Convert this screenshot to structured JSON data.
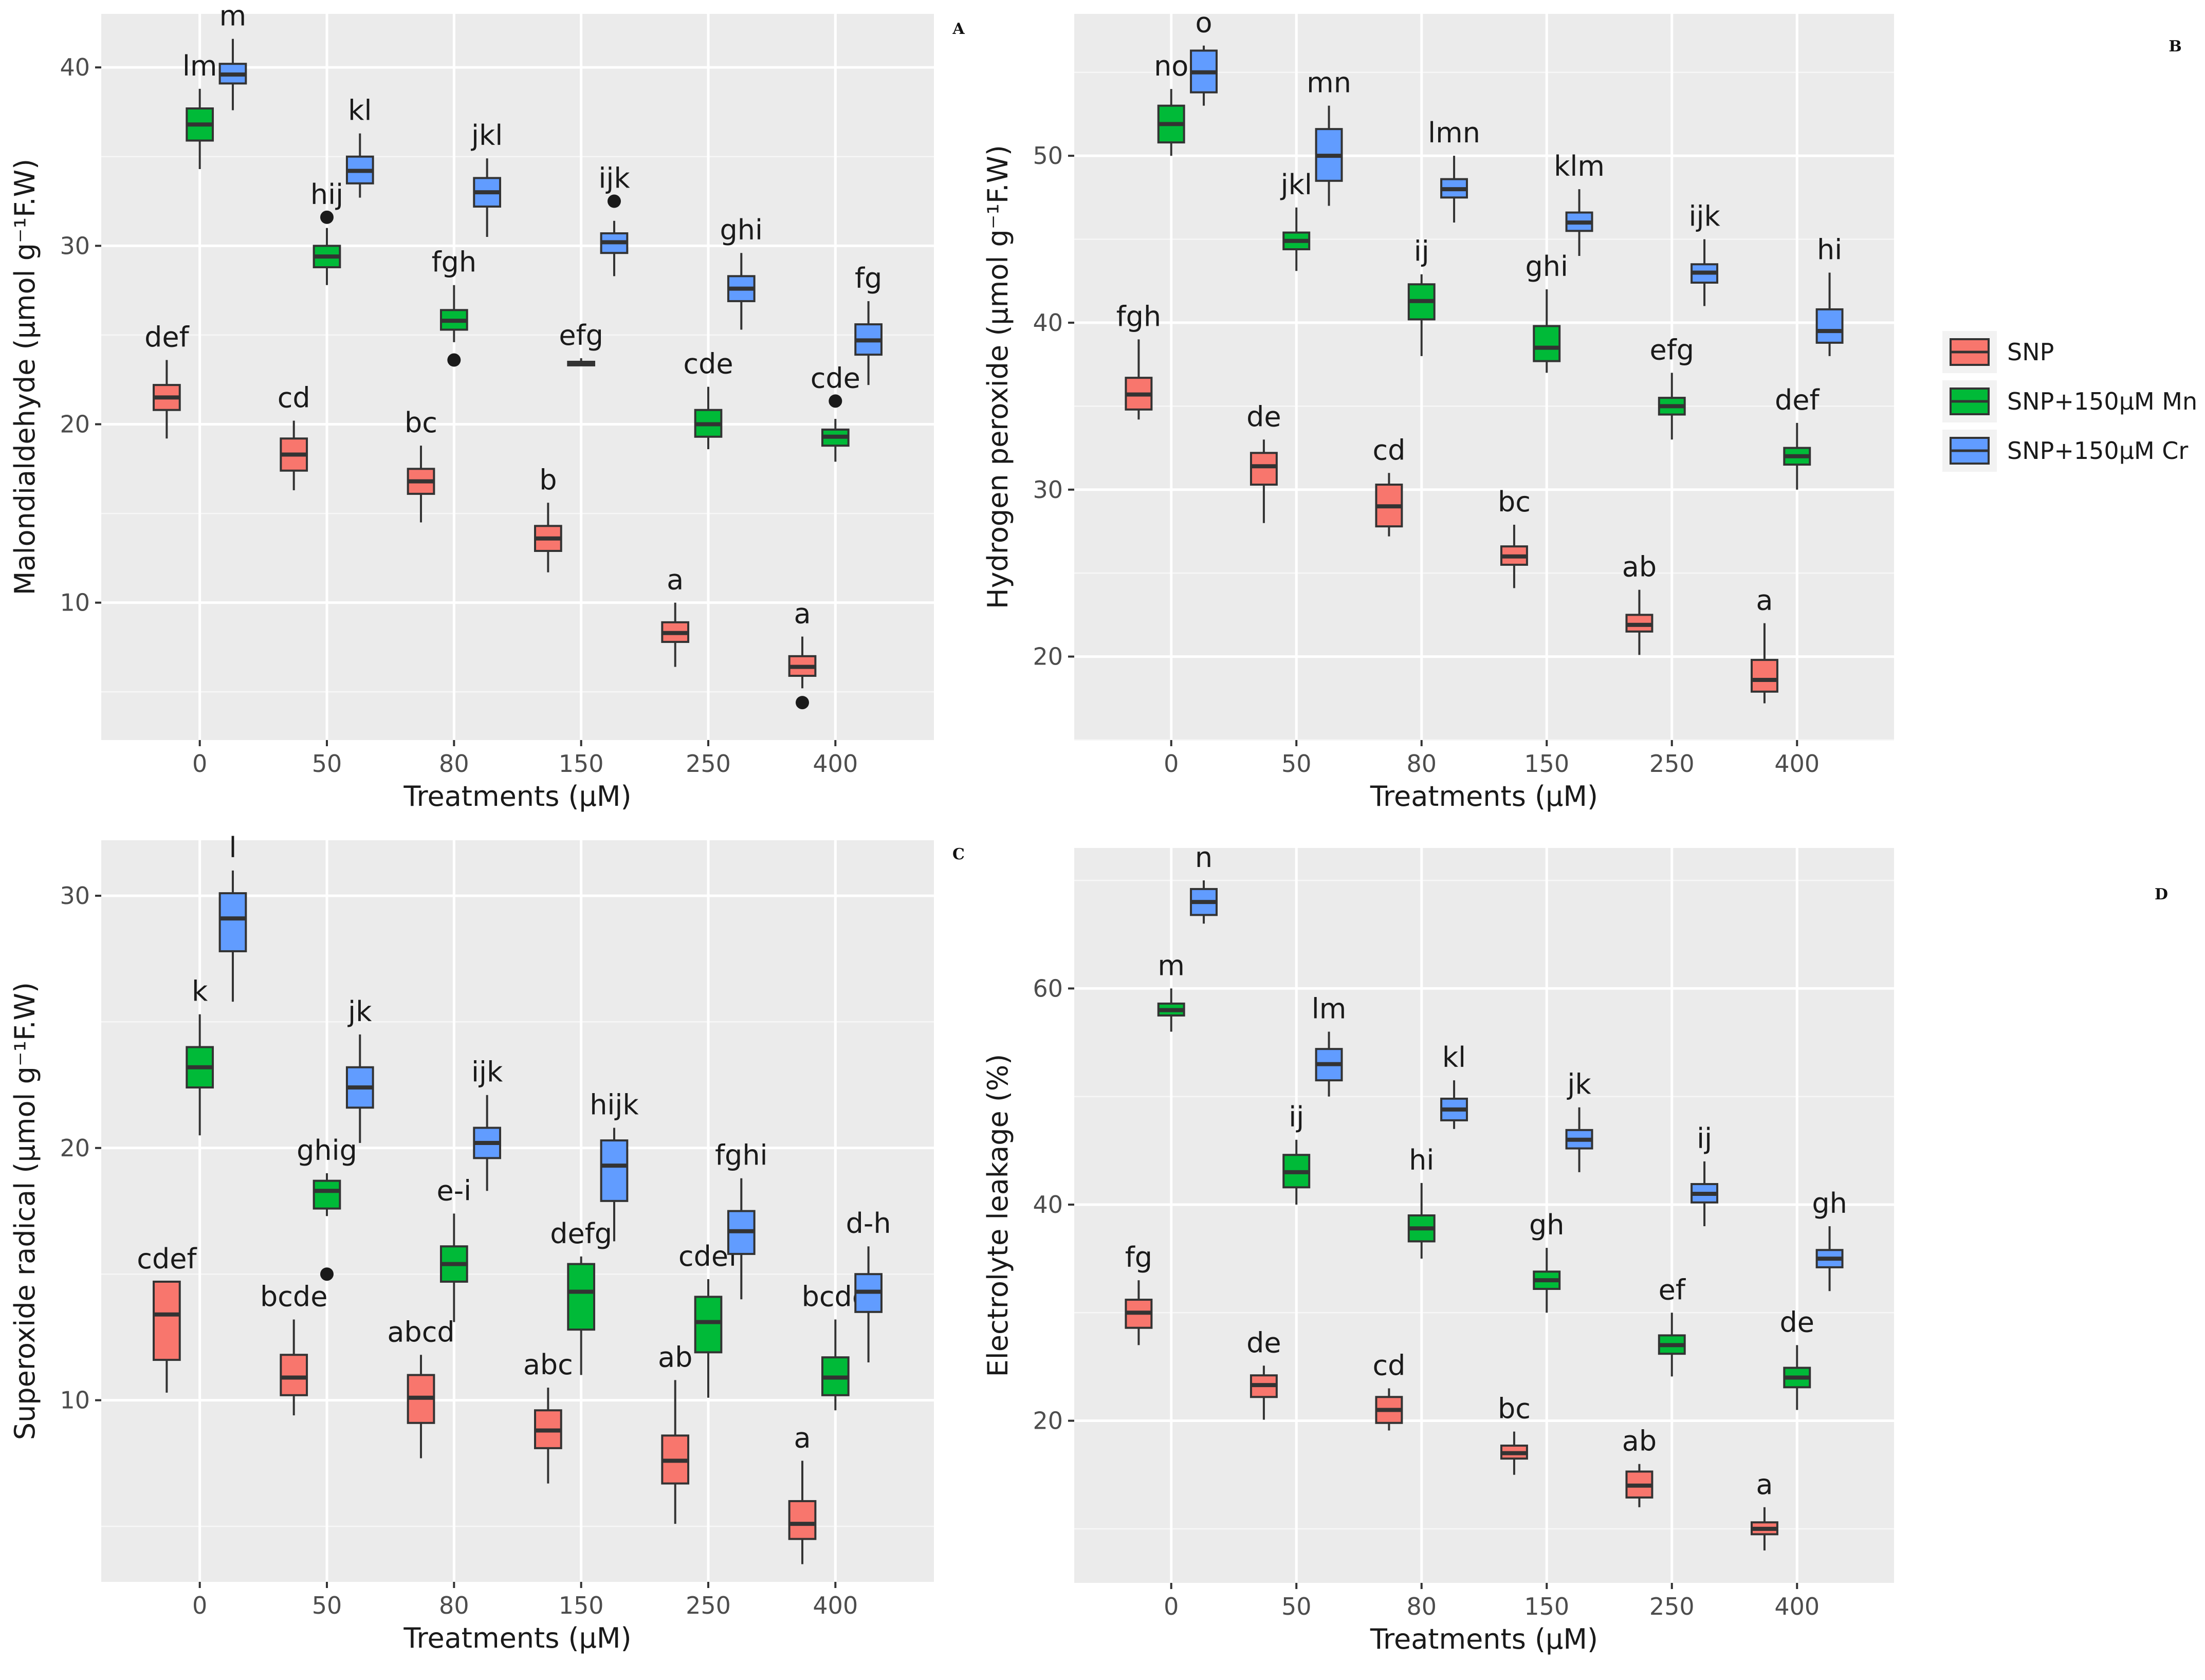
{
  "legend": {
    "items": [
      {
        "label": "SNP",
        "color": "#F8766D"
      },
      {
        "label": "SNP+150μM Mn",
        "color": "#00BA38"
      },
      {
        "label": "SNP+150μM Cr",
        "color": "#619CFF"
      }
    ]
  },
  "chart_data": [
    {
      "panel": "A",
      "type": "box",
      "categories": [
        "0",
        "50",
        "80",
        "150",
        "250",
        "400"
      ],
      "xlabel": "Treatments (μM)",
      "ylabel": "Malondialdehyde (μmol g⁻¹F.W)",
      "ylim": [
        2.3,
        43
      ],
      "yticks": [
        10,
        20,
        30,
        40
      ],
      "grid": true,
      "series": [
        {
          "name": "SNP",
          "boxes": [
            {
              "min": 19.2,
              "q1": 20.8,
              "median": 21.5,
              "q3": 22.2,
              "max": 23.6,
              "label": "def",
              "outliers": []
            },
            {
              "min": 16.3,
              "q1": 17.4,
              "median": 18.3,
              "q3": 19.2,
              "max": 20.2,
              "label": "cd",
              "outliers": []
            },
            {
              "min": 14.5,
              "q1": 16.1,
              "median": 16.8,
              "q3": 17.5,
              "max": 18.8,
              "label": "bc",
              "outliers": []
            },
            {
              "min": 11.7,
              "q1": 12.9,
              "median": 13.6,
              "q3": 14.3,
              "max": 15.6,
              "label": "b",
              "outliers": []
            },
            {
              "min": 6.4,
              "q1": 7.8,
              "median": 8.3,
              "q3": 8.9,
              "max": 10.0,
              "label": "a",
              "outliers": []
            },
            {
              "min": 5.2,
              "q1": 5.9,
              "median": 6.4,
              "q3": 7.0,
              "max": 8.1,
              "label": "a",
              "outliers": [
                4.4
              ]
            }
          ]
        },
        {
          "name": "SNP+150μM Mn",
          "boxes": [
            {
              "min": 34.3,
              "q1": 35.9,
              "median": 36.8,
              "q3": 37.7,
              "max": 38.8,
              "label": "lm",
              "outliers": []
            },
            {
              "min": 27.8,
              "q1": 28.8,
              "median": 29.4,
              "q3": 30.0,
              "max": 31.0,
              "label": "hij",
              "outliers": [
                31.6
              ]
            },
            {
              "min": 24.6,
              "q1": 25.3,
              "median": 25.8,
              "q3": 26.4,
              "max": 27.8,
              "label": "fgh",
              "outliers": [
                23.6
              ]
            },
            {
              "min": 23.3,
              "q1": 23.3,
              "median": 23.4,
              "q3": 23.5,
              "max": 23.7,
              "label": "efg",
              "outliers": []
            },
            {
              "min": 18.6,
              "q1": 19.3,
              "median": 20.0,
              "q3": 20.8,
              "max": 22.1,
              "label": "cde",
              "outliers": []
            },
            {
              "min": 17.9,
              "q1": 18.8,
              "median": 19.3,
              "q3": 19.7,
              "max": 20.3,
              "label": "cde",
              "outliers": [
                21.3
              ]
            }
          ]
        },
        {
          "name": "SNP+150μM Cr",
          "boxes": [
            {
              "min": 37.6,
              "q1": 39.1,
              "median": 39.6,
              "q3": 40.2,
              "max": 41.6,
              "label": "m",
              "outliers": []
            },
            {
              "min": 32.7,
              "q1": 33.5,
              "median": 34.2,
              "q3": 35.0,
              "max": 36.3,
              "label": "kl",
              "outliers": []
            },
            {
              "min": 30.5,
              "q1": 32.2,
              "median": 33.0,
              "q3": 33.8,
              "max": 34.9,
              "label": "jkl",
              "outliers": []
            },
            {
              "min": 28.3,
              "q1": 29.6,
              "median": 30.2,
              "q3": 30.7,
              "max": 31.4,
              "label": "ijk",
              "outliers": [
                32.5
              ]
            },
            {
              "min": 25.3,
              "q1": 26.9,
              "median": 27.6,
              "q3": 28.3,
              "max": 29.6,
              "label": "ghi",
              "outliers": []
            },
            {
              "min": 22.2,
              "q1": 23.9,
              "median": 24.7,
              "q3": 25.6,
              "max": 26.9,
              "label": "fg",
              "outliers": []
            }
          ]
        }
      ]
    },
    {
      "panel": "B",
      "type": "box",
      "categories": [
        "0",
        "50",
        "80",
        "150",
        "250",
        "400"
      ],
      "xlabel": "Treatments (μM)",
      "ylabel": "Hydrogen peroxide (μmol g⁻¹F.W)",
      "ylim": [
        15,
        58.5
      ],
      "yticks": [
        20,
        30,
        40,
        50
      ],
      "grid": true,
      "series": [
        {
          "name": "SNP",
          "boxes": [
            {
              "min": 34.2,
              "q1": 34.8,
              "median": 35.7,
              "q3": 36.7,
              "max": 39.0,
              "label": "fgh",
              "outliers": []
            },
            {
              "min": 28.0,
              "q1": 30.3,
              "median": 31.4,
              "q3": 32.2,
              "max": 33.0,
              "label": "de",
              "outliers": []
            },
            {
              "min": 27.2,
              "q1": 27.8,
              "median": 29.0,
              "q3": 30.3,
              "max": 31.0,
              "label": "cd",
              "outliers": []
            },
            {
              "min": 24.1,
              "q1": 25.5,
              "median": 26.0,
              "q3": 26.6,
              "max": 27.9,
              "label": "bc",
              "outliers": []
            },
            {
              "min": 20.1,
              "q1": 21.5,
              "median": 21.9,
              "q3": 22.5,
              "max": 24.0,
              "label": "ab",
              "outliers": []
            },
            {
              "min": 17.2,
              "q1": 17.9,
              "median": 18.6,
              "q3": 19.8,
              "max": 22.0,
              "label": "a",
              "outliers": []
            }
          ]
        },
        {
          "name": "SNP+150μM Mn",
          "boxes": [
            {
              "min": 50.0,
              "q1": 50.8,
              "median": 51.9,
              "q3": 53.0,
              "max": 54.0,
              "label": "no",
              "outliers": []
            },
            {
              "min": 43.1,
              "q1": 44.4,
              "median": 44.9,
              "q3": 45.4,
              "max": 46.9,
              "label": "jkl",
              "outliers": []
            },
            {
              "min": 38.0,
              "q1": 40.2,
              "median": 41.3,
              "q3": 42.3,
              "max": 42.9,
              "label": "ij",
              "outliers": []
            },
            {
              "min": 37.0,
              "q1": 37.7,
              "median": 38.5,
              "q3": 39.8,
              "max": 42.0,
              "label": "ghi",
              "outliers": []
            },
            {
              "min": 33.0,
              "q1": 34.5,
              "median": 35.0,
              "q3": 35.5,
              "max": 37.0,
              "label": "efg",
              "outliers": []
            },
            {
              "min": 30.0,
              "q1": 31.5,
              "median": 32.0,
              "q3": 32.5,
              "max": 34.0,
              "label": "def",
              "outliers": []
            }
          ]
        },
        {
          "name": "SNP+150μM Cr",
          "boxes": [
            {
              "min": 53.0,
              "q1": 53.8,
              "median": 55.0,
              "q3": 56.3,
              "max": 56.6,
              "label": "o",
              "outliers": []
            },
            {
              "min": 47.0,
              "q1": 48.5,
              "median": 50.0,
              "q3": 51.6,
              "max": 53.0,
              "label": "mn",
              "outliers": []
            },
            {
              "min": 46.0,
              "q1": 47.5,
              "median": 48.0,
              "q3": 48.6,
              "max": 50.0,
              "label": "lmn",
              "outliers": []
            },
            {
              "min": 44.0,
              "q1": 45.5,
              "median": 46.0,
              "q3": 46.6,
              "max": 48.0,
              "label": "klm",
              "outliers": []
            },
            {
              "min": 41.0,
              "q1": 42.4,
              "median": 43.0,
              "q3": 43.5,
              "max": 45.0,
              "label": "ijk",
              "outliers": []
            },
            {
              "min": 38.0,
              "q1": 38.8,
              "median": 39.5,
              "q3": 40.8,
              "max": 43.0,
              "label": "hi",
              "outliers": []
            }
          ]
        }
      ]
    },
    {
      "panel": "C",
      "type": "box",
      "categories": [
        "0",
        "50",
        "80",
        "150",
        "250",
        "400"
      ],
      "xlabel": "Treatments (μM)",
      "ylabel": "Superoxide radical (μmol g⁻¹F.W)",
      "ylim": [
        2.8,
        32.2
      ],
      "yticks": [
        10,
        20,
        30
      ],
      "grid": true,
      "series": [
        {
          "name": "SNP",
          "boxes": [
            {
              "min": 10.3,
              "q1": 11.6,
              "median": 13.4,
              "q3": 14.7,
              "max": 14.7,
              "label": "cdef",
              "outliers": []
            },
            {
              "min": 9.4,
              "q1": 10.2,
              "median": 10.9,
              "q3": 11.8,
              "max": 13.2,
              "label": "bcde",
              "outliers": []
            },
            {
              "min": 7.7,
              "q1": 9.1,
              "median": 10.1,
              "q3": 11.0,
              "max": 11.8,
              "label": "abcd",
              "outliers": []
            },
            {
              "min": 6.7,
              "q1": 8.1,
              "median": 8.8,
              "q3": 9.6,
              "max": 10.5,
              "label": "abc",
              "outliers": []
            },
            {
              "min": 5.1,
              "q1": 6.7,
              "median": 7.6,
              "q3": 8.6,
              "max": 10.8,
              "label": "ab",
              "outliers": []
            },
            {
              "min": 3.5,
              "q1": 4.5,
              "median": 5.1,
              "q3": 6.0,
              "max": 7.6,
              "label": "a",
              "outliers": []
            }
          ]
        },
        {
          "name": "SNP+150μM Mn",
          "boxes": [
            {
              "min": 20.5,
              "q1": 22.4,
              "median": 23.2,
              "q3": 24.0,
              "max": 25.3,
              "label": "k",
              "outliers": []
            },
            {
              "min": 17.3,
              "q1": 17.6,
              "median": 18.3,
              "q3": 18.7,
              "max": 19.0,
              "label": "ghig",
              "outliers": [
                15.0
              ]
            },
            {
              "min": 13.1,
              "q1": 14.7,
              "median": 15.4,
              "q3": 16.1,
              "max": 17.4,
              "label": "e-i",
              "outliers": []
            },
            {
              "min": 11.0,
              "q1": 12.8,
              "median": 14.3,
              "q3": 15.4,
              "max": 15.7,
              "label": "defg",
              "outliers": []
            },
            {
              "min": 10.1,
              "q1": 11.9,
              "median": 13.1,
              "q3": 14.1,
              "max": 14.8,
              "label": "cdef",
              "outliers": []
            },
            {
              "min": 9.6,
              "q1": 10.2,
              "median": 10.9,
              "q3": 11.7,
              "max": 13.2,
              "label": "bcde",
              "outliers": []
            }
          ]
        },
        {
          "name": "SNP+150μM Cr",
          "boxes": [
            {
              "min": 25.8,
              "q1": 27.8,
              "median": 29.1,
              "q3": 30.1,
              "max": 31.0,
              "label": "l",
              "outliers": []
            },
            {
              "min": 20.2,
              "q1": 21.6,
              "median": 22.4,
              "q3": 23.2,
              "max": 24.5,
              "label": "jk",
              "outliers": []
            },
            {
              "min": 18.3,
              "q1": 19.6,
              "median": 20.2,
              "q3": 20.8,
              "max": 22.1,
              "label": "ijk",
              "outliers": []
            },
            {
              "min": 16.3,
              "q1": 17.9,
              "median": 19.3,
              "q3": 20.3,
              "max": 20.8,
              "label": "hijk",
              "outliers": []
            },
            {
              "min": 14.0,
              "q1": 15.8,
              "median": 16.7,
              "q3": 17.5,
              "max": 18.8,
              "label": "fghi",
              "outliers": []
            },
            {
              "min": 11.5,
              "q1": 13.5,
              "median": 14.3,
              "q3": 15.0,
              "max": 16.1,
              "label": "d-h",
              "outliers": []
            }
          ]
        }
      ]
    },
    {
      "panel": "D",
      "type": "box",
      "categories": [
        "0",
        "50",
        "80",
        "150",
        "250",
        "400"
      ],
      "xlabel": "Treatments (μM)",
      "ylabel": "Electrolyte leakage (%)",
      "ylim": [
        5,
        73
      ],
      "yticks": [
        20,
        40,
        60
      ],
      "grid": true,
      "series": [
        {
          "name": "SNP",
          "boxes": [
            {
              "min": 27.0,
              "q1": 28.6,
              "median": 30.0,
              "q3": 31.2,
              "max": 33.0,
              "label": "fg",
              "outliers": []
            },
            {
              "min": 20.1,
              "q1": 22.2,
              "median": 23.3,
              "q3": 24.2,
              "max": 25.1,
              "label": "de",
              "outliers": []
            },
            {
              "min": 19.1,
              "q1": 19.8,
              "median": 21.0,
              "q3": 22.2,
              "max": 23.0,
              "label": "cd",
              "outliers": []
            },
            {
              "min": 15.0,
              "q1": 16.5,
              "median": 17.0,
              "q3": 17.7,
              "max": 19.0,
              "label": "bc",
              "outliers": []
            },
            {
              "min": 12.0,
              "q1": 12.9,
              "median": 14.0,
              "q3": 15.3,
              "max": 16.0,
              "label": "ab",
              "outliers": []
            },
            {
              "min": 8.0,
              "q1": 9.5,
              "median": 10.0,
              "q3": 10.6,
              "max": 12.0,
              "label": "a",
              "outliers": []
            }
          ]
        },
        {
          "name": "SNP+150μM Mn",
          "boxes": [
            {
              "min": 56.0,
              "q1": 57.5,
              "median": 58.0,
              "q3": 58.6,
              "max": 60.0,
              "label": "m",
              "outliers": []
            },
            {
              "min": 40.0,
              "q1": 41.6,
              "median": 43.0,
              "q3": 44.6,
              "max": 46.0,
              "label": "ij",
              "outliers": []
            },
            {
              "min": 35.0,
              "q1": 36.6,
              "median": 37.8,
              "q3": 39.0,
              "max": 42.0,
              "label": "hi",
              "outliers": []
            },
            {
              "min": 30.0,
              "q1": 32.2,
              "median": 33.0,
              "q3": 33.8,
              "max": 36.0,
              "label": "gh",
              "outliers": []
            },
            {
              "min": 24.1,
              "q1": 26.2,
              "median": 27.0,
              "q3": 27.9,
              "max": 30.0,
              "label": "ef",
              "outliers": []
            },
            {
              "min": 21.0,
              "q1": 23.1,
              "median": 24.0,
              "q3": 24.9,
              "max": 27.0,
              "label": "de",
              "outliers": []
            }
          ]
        },
        {
          "name": "SNP+150μM Cr",
          "boxes": [
            {
              "min": 66.0,
              "q1": 66.8,
              "median": 68.0,
              "q3": 69.2,
              "max": 70.0,
              "label": "n",
              "outliers": []
            },
            {
              "min": 50.0,
              "q1": 51.5,
              "median": 53.0,
              "q3": 54.4,
              "max": 56.0,
              "label": "lm",
              "outliers": []
            },
            {
              "min": 47.0,
              "q1": 47.8,
              "median": 48.8,
              "q3": 49.8,
              "max": 51.5,
              "label": "kl",
              "outliers": []
            },
            {
              "min": 43.0,
              "q1": 45.2,
              "median": 46.0,
              "q3": 46.9,
              "max": 49.0,
              "label": "jk",
              "outliers": []
            },
            {
              "min": 38.0,
              "q1": 40.2,
              "median": 41.0,
              "q3": 41.9,
              "max": 44.0,
              "label": "ij",
              "outliers": []
            },
            {
              "min": 32.0,
              "q1": 34.2,
              "median": 35.0,
              "q3": 35.8,
              "max": 38.0,
              "label": "gh",
              "outliers": []
            }
          ]
        }
      ]
    }
  ]
}
